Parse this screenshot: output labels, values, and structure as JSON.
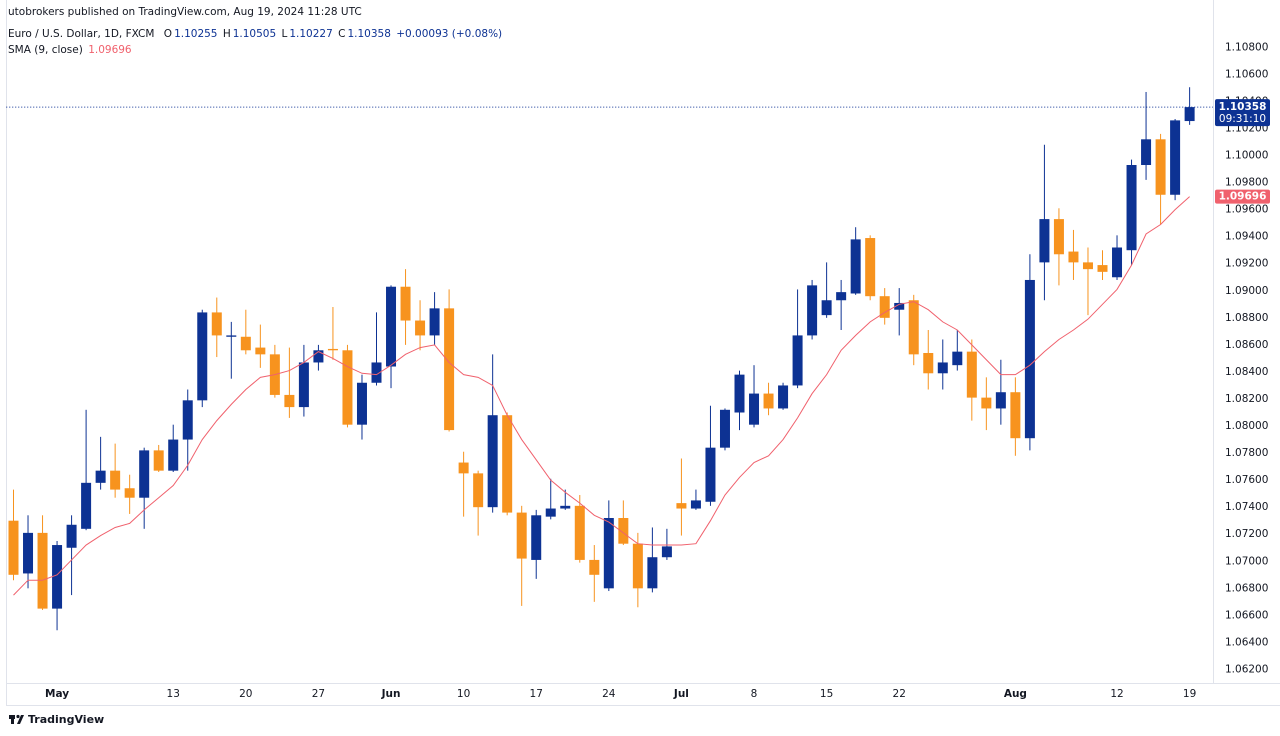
{
  "header": {
    "publisher": "utobrokers published on TradingView.com, Aug 19, 2024 11:28 UTC",
    "symbol": "Euro / U.S. Dollar, 1D, FXCM",
    "ohlc_keys": [
      "O",
      "H",
      "L",
      "C"
    ],
    "change": "+0.00093 (+0.08%)",
    "countdown": "09:31:10",
    "brand": "TradingView"
  },
  "chart_data": {
    "type": "candlestick",
    "categories": [
      "2024-04-26",
      "2024-04-29",
      "2024-04-30",
      "2024-05-01",
      "2024-05-02",
      "2024-05-03",
      "2024-05-06",
      "2024-05-07",
      "2024-05-08",
      "2024-05-09",
      "2024-05-10",
      "2024-05-13",
      "2024-05-14",
      "2024-05-15",
      "2024-05-16",
      "2024-05-17",
      "2024-05-20",
      "2024-05-21",
      "2024-05-22",
      "2024-05-23",
      "2024-05-24",
      "2024-05-27",
      "2024-05-28",
      "2024-05-29",
      "2024-05-30",
      "2024-05-31",
      "2024-06-03",
      "2024-06-04",
      "2024-06-05",
      "2024-06-06",
      "2024-06-07",
      "2024-06-10",
      "2024-06-11",
      "2024-06-12",
      "2024-06-13",
      "2024-06-14",
      "2024-06-17",
      "2024-06-18",
      "2024-06-19",
      "2024-06-20",
      "2024-06-21",
      "2024-06-24",
      "2024-06-25",
      "2024-06-26",
      "2024-06-27",
      "2024-06-28",
      "2024-07-01",
      "2024-07-02",
      "2024-07-03",
      "2024-07-04",
      "2024-07-05",
      "2024-07-08",
      "2024-07-09",
      "2024-07-10",
      "2024-07-11",
      "2024-07-12",
      "2024-07-15",
      "2024-07-16",
      "2024-07-17",
      "2024-07-18",
      "2024-07-19",
      "2024-07-22",
      "2024-07-23",
      "2024-07-24",
      "2024-07-25",
      "2024-07-26",
      "2024-07-29",
      "2024-07-30",
      "2024-07-31",
      "2024-08-01",
      "2024-08-02",
      "2024-08-05",
      "2024-08-06",
      "2024-08-07",
      "2024-08-08",
      "2024-08-09",
      "2024-08-12",
      "2024-08-13",
      "2024-08-14",
      "2024-08-15",
      "2024-08-16",
      "2024-08-19"
    ],
    "open": [
      1.073,
      1.0691,
      1.0721,
      1.0665,
      1.071,
      1.0724,
      1.0758,
      1.0767,
      1.0754,
      1.0747,
      1.0782,
      1.0767,
      1.079,
      1.0819,
      1.0884,
      1.0866,
      1.0866,
      1.0858,
      1.0853,
      1.0823,
      1.0814,
      1.0847,
      1.0857,
      1.0856,
      1.0801,
      1.0832,
      1.0844,
      1.0903,
      1.0878,
      1.0867,
      1.0887,
      1.0773,
      1.0765,
      1.074,
      1.0808,
      1.0736,
      1.0701,
      1.0733,
      1.0739,
      1.0741,
      1.0701,
      1.068,
      1.0732,
      1.0713,
      1.068,
      1.0703,
      1.0743,
      1.0739,
      1.0744,
      1.0784,
      1.081,
      1.0801,
      1.0824,
      1.0813,
      1.083,
      1.0867,
      1.0882,
      1.0893,
      1.0898,
      1.0939,
      1.0896,
      1.0886,
      1.0893,
      1.0854,
      1.0839,
      1.0845,
      1.0855,
      1.0821,
      1.0813,
      1.0825,
      1.0791,
      1.0921,
      1.0953,
      1.0929,
      1.0921,
      1.0919,
      1.091,
      1.093,
      1.0993,
      1.1012,
      1.0971,
      1.10255
    ],
    "high": [
      1.0753,
      1.0734,
      1.0734,
      1.0715,
      1.0734,
      1.0812,
      1.0792,
      1.0787,
      1.0764,
      1.0784,
      1.0786,
      1.0801,
      1.0827,
      1.0886,
      1.0895,
      1.0877,
      1.0886,
      1.0875,
      1.086,
      1.0858,
      1.086,
      1.086,
      1.0888,
      1.086,
      1.0838,
      1.0884,
      1.0904,
      1.0916,
      1.0893,
      1.0899,
      1.0901,
      1.0781,
      1.0767,
      1.0853,
      1.081,
      1.0741,
      1.0738,
      1.0761,
      1.0753,
      1.0749,
      1.0712,
      1.0745,
      1.0745,
      1.0721,
      1.0725,
      1.0724,
      1.0776,
      1.0753,
      1.0815,
      1.0813,
      1.0841,
      1.0845,
      1.0832,
      1.0832,
      1.0901,
      1.0908,
      1.0921,
      1.0908,
      1.0947,
      1.0941,
      1.0902,
      1.0902,
      1.0897,
      1.0871,
      1.0864,
      1.0871,
      1.0864,
      1.0836,
      1.0849,
      1.0836,
      1.0927,
      1.1008,
      1.0961,
      1.0945,
      1.0932,
      1.093,
      1.0941,
      1.0997,
      1.1047,
      1.1016,
      1.1027,
      1.10505
    ],
    "low": [
      1.0686,
      1.068,
      1.0664,
      1.0649,
      1.0675,
      1.0723,
      1.0753,
      1.0747,
      1.0735,
      1.0724,
      1.0766,
      1.0766,
      1.0767,
      1.0814,
      1.0851,
      1.0835,
      1.0853,
      1.0843,
      1.0821,
      1.0806,
      1.0807,
      1.0841,
      1.0849,
      1.0799,
      1.079,
      1.083,
      1.0828,
      1.086,
      1.0856,
      1.086,
      1.0796,
      1.0733,
      1.0719,
      1.0736,
      1.0734,
      1.0667,
      1.0687,
      1.0731,
      1.0738,
      1.0699,
      1.067,
      1.0678,
      1.0712,
      1.0666,
      1.0677,
      1.0701,
      1.0719,
      1.0738,
      1.0741,
      1.0782,
      1.0797,
      1.0799,
      1.0808,
      1.0812,
      1.0828,
      1.0864,
      1.088,
      1.0871,
      1.0897,
      1.0893,
      1.0875,
      1.0867,
      1.0845,
      1.0827,
      1.0827,
      1.0841,
      1.0804,
      1.0797,
      1.0801,
      1.0778,
      1.0782,
      1.0893,
      1.0904,
      1.0908,
      1.0882,
      1.0908,
      1.0908,
      1.0919,
      1.0982,
      1.0949,
      1.0967,
      1.10227
    ],
    "close": [
      1.069,
      1.0721,
      1.0665,
      1.0712,
      1.0727,
      1.0758,
      1.0767,
      1.0753,
      1.0747,
      1.0782,
      1.0767,
      1.079,
      1.0819,
      1.0884,
      1.0867,
      1.0867,
      1.0856,
      1.0853,
      1.0823,
      1.0814,
      1.0847,
      1.0856,
      1.0856,
      1.0801,
      1.0832,
      1.0847,
      1.0903,
      1.0878,
      1.0867,
      1.0887,
      1.0797,
      1.0765,
      1.074,
      1.0808,
      1.0736,
      1.0702,
      1.0734,
      1.0739,
      1.0741,
      1.0701,
      1.069,
      1.0732,
      1.0713,
      1.068,
      1.0703,
      1.0711,
      1.0739,
      1.0745,
      1.0784,
      1.0812,
      1.0838,
      1.0824,
      1.0813,
      1.083,
      1.0867,
      1.0904,
      1.0893,
      1.0899,
      1.0938,
      1.0896,
      1.088,
      1.0891,
      1.0853,
      1.0839,
      1.0847,
      1.0855,
      1.0821,
      1.0813,
      1.0825,
      1.0791,
      1.0908,
      1.0953,
      1.0927,
      1.0921,
      1.0916,
      1.0914,
      1.0932,
      1.0993,
      1.1012,
      1.0971,
      1.1026,
      1.10358
    ],
    "up_color": "#0d3293",
    "down_color": "#f7931e",
    "sma": {
      "name": "SMA (9, close)",
      "color": "#f0616d",
      "values": [
        1.0675,
        1.0686,
        1.0686,
        1.069,
        1.0701,
        1.0712,
        1.0719,
        1.0725,
        1.0728,
        1.0738,
        1.0747,
        1.0756,
        1.0771,
        1.079,
        1.0804,
        1.0816,
        1.0827,
        1.0836,
        1.0838,
        1.0841,
        1.0847,
        1.0855,
        1.085,
        1.0844,
        1.0839,
        1.0838,
        1.0845,
        1.0853,
        1.0858,
        1.086,
        1.0847,
        1.0838,
        1.0836,
        1.083,
        1.0808,
        1.079,
        1.0775,
        1.076,
        1.0751,
        1.0743,
        1.0734,
        1.0729,
        1.0721,
        1.0713,
        1.0712,
        1.0712,
        1.0712,
        1.0713,
        1.073,
        1.0749,
        1.0762,
        1.0773,
        1.0778,
        1.079,
        1.0806,
        1.0824,
        1.0838,
        1.0856,
        1.0867,
        1.0877,
        1.0884,
        1.089,
        1.0892,
        1.0886,
        1.0877,
        1.0871,
        1.086,
        1.0849,
        1.0838,
        1.0838,
        1.0845,
        1.0855,
        1.0864,
        1.0871,
        1.0879,
        1.089,
        1.0901,
        1.0919,
        1.0942,
        1.0949,
        1.096,
        1.09696
      ]
    },
    "ylim": [
      1.061,
      1.1115
    ],
    "yticks": [
      {
        "value": 1.108,
        "label": "1.10800"
      },
      {
        "value": 1.106,
        "label": "1.10600"
      },
      {
        "value": 1.104,
        "label": "1.10400"
      },
      {
        "value": 1.102,
        "label": "1.10200"
      },
      {
        "value": 1.1,
        "label": "1.10000"
      },
      {
        "value": 1.098,
        "label": "1.09800"
      },
      {
        "value": 1.096,
        "label": "1.09600"
      },
      {
        "value": 1.094,
        "label": "1.09400"
      },
      {
        "value": 1.092,
        "label": "1.09200"
      },
      {
        "value": 1.09,
        "label": "1.09000"
      },
      {
        "value": 1.088,
        "label": "1.08800"
      },
      {
        "value": 1.086,
        "label": "1.08600"
      },
      {
        "value": 1.084,
        "label": "1.08400"
      },
      {
        "value": 1.082,
        "label": "1.08200"
      },
      {
        "value": 1.08,
        "label": "1.08000"
      },
      {
        "value": 1.078,
        "label": "1.07800"
      },
      {
        "value": 1.076,
        "label": "1.07600"
      },
      {
        "value": 1.074,
        "label": "1.07400"
      },
      {
        "value": 1.072,
        "label": "1.07200"
      },
      {
        "value": 1.07,
        "label": "1.07000"
      },
      {
        "value": 1.068,
        "label": "1.06800"
      },
      {
        "value": 1.066,
        "label": "1.06600"
      },
      {
        "value": 1.064,
        "label": "1.06400"
      },
      {
        "value": 1.062,
        "label": "1.06200"
      }
    ],
    "xticks": [
      {
        "value": "2024-05-01",
        "label": "May"
      },
      {
        "value": "2024-05-13",
        "label": "13"
      },
      {
        "value": "2024-05-20",
        "label": "20"
      },
      {
        "value": "2024-05-27",
        "label": "27"
      },
      {
        "value": "2024-06-03",
        "label": "Jun"
      },
      {
        "value": "2024-06-10",
        "label": "10"
      },
      {
        "value": "2024-06-17",
        "label": "17"
      },
      {
        "value": "2024-06-24",
        "label": "24"
      },
      {
        "value": "2024-07-01",
        "label": "Jul"
      },
      {
        "value": "2024-07-08",
        "label": "8"
      },
      {
        "value": "2024-07-15",
        "label": "15"
      },
      {
        "value": "2024-07-22",
        "label": "22"
      },
      {
        "value": "2024-08-01",
        "label": "Aug"
      },
      {
        "value": "2024-08-12",
        "label": "12"
      },
      {
        "value": "2024-08-19",
        "label": "19"
      }
    ],
    "grid": false
  }
}
